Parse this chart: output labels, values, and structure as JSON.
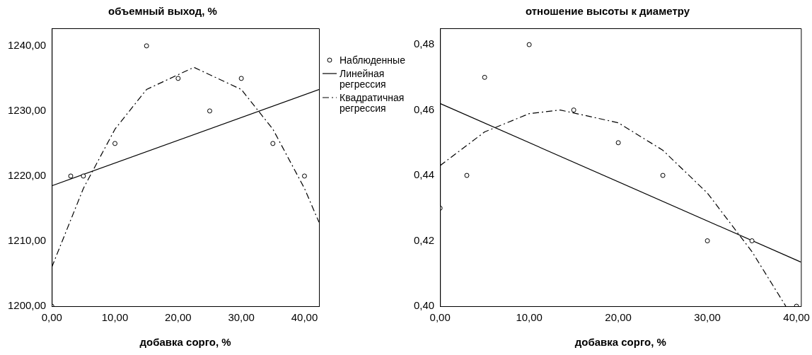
{
  "chart_data": [
    {
      "type": "scatter",
      "title": "объемный выход, %",
      "xlabel": "добавка сорго, %",
      "xlim": [
        0,
        42.3
      ],
      "ylim": [
        1200,
        1242.7
      ],
      "xticks": [
        {
          "value": 0,
          "label": "0,00"
        },
        {
          "value": 10,
          "label": "10,00"
        },
        {
          "value": 20,
          "label": "20,00"
        },
        {
          "value": 30,
          "label": "30,00"
        },
        {
          "value": 40,
          "label": "40,00"
        }
      ],
      "yticks": [
        {
          "value": 1200,
          "label": "1200,00"
        },
        {
          "value": 1210,
          "label": "1210,00"
        },
        {
          "value": 1220,
          "label": "1220,00"
        },
        {
          "value": 1230,
          "label": "1230,00"
        },
        {
          "value": 1240,
          "label": "1240,00"
        }
      ],
      "grid": false,
      "legend": "right",
      "series": [
        {
          "name": "Наблюденные",
          "marker": "circle",
          "color": "#000000",
          "x": [
            0,
            3,
            5,
            10,
            15,
            20,
            25,
            30,
            35,
            40
          ],
          "values": [
            1200,
            1220,
            1220,
            1225,
            1240,
            1235,
            1230,
            1235,
            1225,
            1220
          ]
        },
        {
          "name": "Линейная регрессия",
          "type": "line",
          "marker": "none",
          "line_style": "solid",
          "color": "#000000",
          "x": [
            0,
            42.3
          ],
          "values": [
            1218.5,
            1233.3
          ]
        },
        {
          "name": "Квадратичная регрессия",
          "type": "line",
          "marker": "none",
          "line_style": "dashed",
          "color": "#000000",
          "x": [
            0,
            5,
            10,
            15,
            22.5,
            30,
            35,
            40,
            42.3
          ],
          "values": [
            1206,
            1218.1,
            1227.2,
            1233.3,
            1236.7,
            1233.3,
            1227.2,
            1218.1,
            1212.9
          ]
        }
      ]
    },
    {
      "type": "scatter",
      "title": "отношение высоты к диаметру",
      "xlabel": "добавка сорго, %",
      "xlim": [
        0,
        40.5
      ],
      "ylim": [
        0.4,
        0.485
      ],
      "xticks": [
        {
          "value": 0,
          "label": "0,00"
        },
        {
          "value": 10,
          "label": "10,00"
        },
        {
          "value": 20,
          "label": "20,00"
        },
        {
          "value": 30,
          "label": "30,00"
        },
        {
          "value": 40,
          "label": "40,00"
        }
      ],
      "yticks": [
        {
          "value": 0.4,
          "label": "0,40"
        },
        {
          "value": 0.42,
          "label": "0,42"
        },
        {
          "value": 0.44,
          "label": "0,44"
        },
        {
          "value": 0.46,
          "label": "0,46"
        },
        {
          "value": 0.48,
          "label": "0,48"
        }
      ],
      "grid": false,
      "series": [
        {
          "marker": "circle",
          "color": "#000000",
          "x": [
            0,
            3,
            5,
            10,
            15,
            20,
            25,
            30,
            35,
            40
          ],
          "values": [
            0.43,
            0.44,
            0.47,
            0.48,
            0.46,
            0.45,
            0.44,
            0.42,
            0.42,
            0.4
          ]
        },
        {
          "type": "line",
          "marker": "none",
          "line_style": "solid",
          "color": "#000000",
          "x": [
            0,
            40.5
          ],
          "values": [
            0.462,
            0.4135
          ]
        },
        {
          "type": "line",
          "marker": "none",
          "line_style": "dashed",
          "color": "#000000",
          "x": [
            0,
            5,
            10,
            13.5,
            20,
            25,
            30,
            35,
            38.8
          ],
          "values": [
            0.443,
            0.4533,
            0.4589,
            0.46,
            0.4561,
            0.4477,
            0.4346,
            0.4167,
            0.4
          ]
        }
      ]
    }
  ]
}
